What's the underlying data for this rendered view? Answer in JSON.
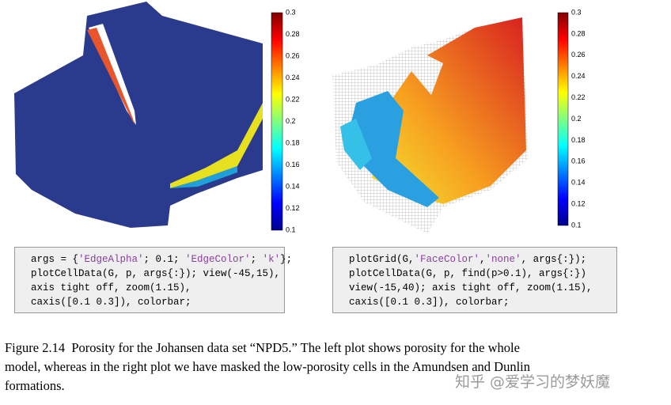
{
  "left": {
    "colorbar": {
      "ticks": [
        "0.3",
        "0.28",
        "0.26",
        "0.24",
        "0.22",
        "0.2",
        "0.18",
        "0.16",
        "0.14",
        "0.12",
        "0.1"
      ]
    },
    "code": [
      [
        "args = {",
        "'EdgeAlpha'",
        "; 0.1; ",
        "'EdgeColor'",
        "; ",
        "'k'",
        "};"
      ],
      [
        "plotCellData(G, p, args{:}); view(-45,15),"
      ],
      [
        "axis tight off, zoom(1.15),"
      ],
      [
        "caxis([0.1 0.3]), colorbar;"
      ]
    ]
  },
  "right": {
    "colorbar": {
      "ticks": [
        "0.3",
        "0.28",
        "0.26",
        "0.24",
        "0.22",
        "0.2",
        "0.18",
        "0.16",
        "0.14",
        "0.12",
        "0.1"
      ]
    },
    "code": [
      [
        "plotGrid(G,",
        "'FaceColor'",
        ",",
        "'none'",
        ", args{:});"
      ],
      [
        "plotCellData(G, p, find(p>0.1), args{:})"
      ],
      [
        "view(-15,40); axis tight off, zoom(1.15),"
      ],
      [
        "caxis([0.1 0.3]), colorbar;"
      ]
    ]
  },
  "caption": [
    "Figure 2.14  Porosity for the Johansen data set “NPD5.” The left plot shows porosity for the whole",
    "model, whereas in the right plot we have masked the low-porosity cells in the Amundsen and Dunlin",
    "formations."
  ],
  "watermark": "知乎 @爱学习的梦妖魔"
}
